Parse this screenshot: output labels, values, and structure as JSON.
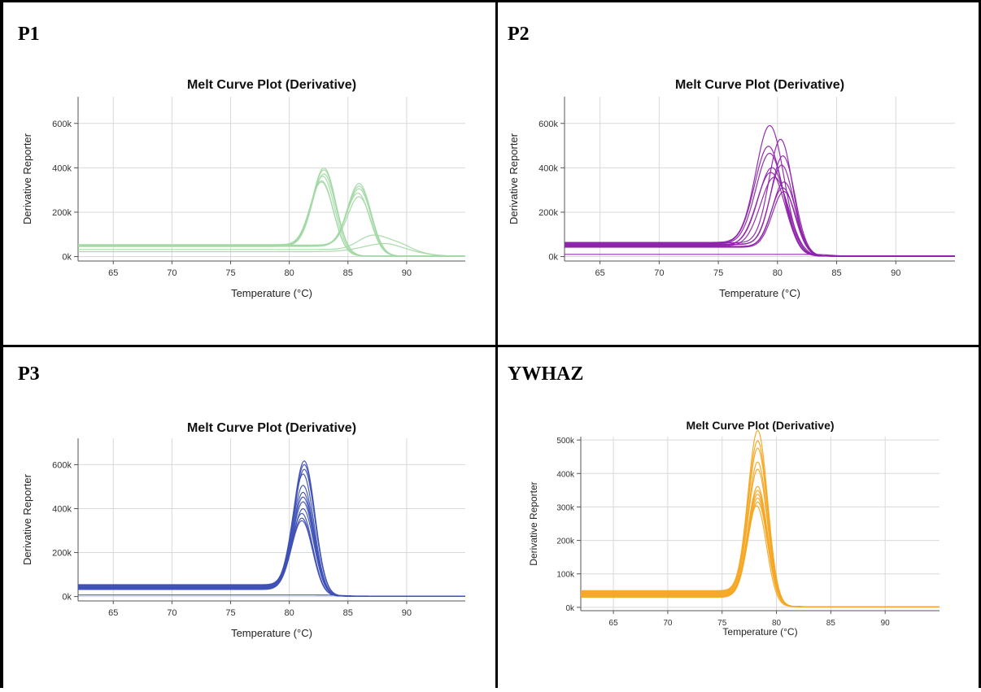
{
  "chart_data": [
    {
      "panel_label": "P1",
      "type": "line",
      "title": "Melt Curve Plot (Derivative)",
      "xlabel": "Temperature (°C)",
      "ylabel": "Derivative Reporter",
      "xlim": [
        62,
        95
      ],
      "ylim": [
        -20000,
        720000
      ],
      "xticks": [
        65,
        70,
        75,
        80,
        85,
        90
      ],
      "xtick_labels": [
        "65",
        "70",
        "75",
        "80",
        "85",
        "90"
      ],
      "yticks": [
        0,
        200000,
        400000,
        600000
      ],
      "ytick_labels": [
        "0k",
        "200k",
        "400k",
        "600k"
      ],
      "grid": true,
      "color": "#a3d9a5",
      "series": [
        {
          "base": 48000,
          "peaks": [
            {
              "c": 83.0,
              "h": 360000,
              "w": 1.0
            }
          ]
        },
        {
          "base": 50000,
          "peaks": [
            {
              "c": 83.0,
              "h": 350000,
              "w": 1.0
            }
          ]
        },
        {
          "base": 46000,
          "peaks": [
            {
              "c": 83.0,
              "h": 335000,
              "w": 1.0
            }
          ]
        },
        {
          "base": 52000,
          "peaks": [
            {
              "c": 82.9,
              "h": 320000,
              "w": 1.0
            }
          ]
        },
        {
          "base": 44000,
          "peaks": [
            {
              "c": 82.8,
              "h": 305000,
              "w": 1.0
            }
          ]
        },
        {
          "base": 50000,
          "peaks": [
            {
              "c": 82.8,
              "h": 295000,
              "w": 1.0
            }
          ]
        },
        {
          "base": 48000,
          "peaks": [
            {
              "c": 86.0,
              "h": 290000,
              "w": 1.0
            }
          ]
        },
        {
          "base": 46000,
          "peaks": [
            {
              "c": 86.0,
              "h": 280000,
              "w": 1.0
            }
          ]
        },
        {
          "base": 50000,
          "peaks": [
            {
              "c": 86.0,
              "h": 265000,
              "w": 1.0
            }
          ]
        },
        {
          "base": 44000,
          "peaks": [
            {
              "c": 85.9,
              "h": 250000,
              "w": 1.0
            }
          ]
        },
        {
          "base": 48000,
          "peaks": [
            {
              "c": 86.0,
              "h": 230000,
              "w": 1.0
            }
          ]
        },
        {
          "base": 30000,
          "peaks": [
            {
              "c": 87.0,
              "h": 55000,
              "w": 1.2
            },
            {
              "c": 89.5,
              "h": 30000,
              "w": 1.6
            }
          ]
        },
        {
          "base": 20000,
          "peaks": [
            {
              "c": 88.5,
              "h": 40000,
              "w": 2.0
            }
          ]
        }
      ]
    },
    {
      "panel_label": "P2",
      "type": "line",
      "title": "Melt Curve Plot (Derivative)",
      "xlabel": "Temperature (°C)",
      "ylabel": "Derivative Reporter",
      "xlim": [
        62,
        95
      ],
      "ylim": [
        -20000,
        720000
      ],
      "xticks": [
        65,
        70,
        75,
        80,
        85,
        90
      ],
      "xtick_labels": [
        "65",
        "70",
        "75",
        "80",
        "85",
        "90"
      ],
      "yticks": [
        0,
        200000,
        400000,
        600000
      ],
      "ytick_labels": [
        "0k",
        "200k",
        "400k",
        "600k"
      ],
      "grid": true,
      "color": "#8e24aa",
      "series": [
        {
          "base": 62000,
          "peaks": [
            {
              "c": 79.4,
              "h": 540000,
              "w": 1.2
            }
          ]
        },
        {
          "base": 60000,
          "peaks": [
            {
              "c": 80.3,
              "h": 480000,
              "w": 1.0
            }
          ]
        },
        {
          "base": 58000,
          "peaks": [
            {
              "c": 79.3,
              "h": 450000,
              "w": 1.2
            }
          ]
        },
        {
          "base": 56000,
          "peaks": [
            {
              "c": 79.4,
              "h": 420000,
              "w": 1.2
            }
          ]
        },
        {
          "base": 54000,
          "peaks": [
            {
              "c": 80.5,
              "h": 410000,
              "w": 1.0
            }
          ]
        },
        {
          "base": 52000,
          "peaks": [
            {
              "c": 80.4,
              "h": 370000,
              "w": 1.0
            }
          ]
        },
        {
          "base": 50000,
          "peaks": [
            {
              "c": 79.6,
              "h": 360000,
              "w": 1.2
            }
          ]
        },
        {
          "base": 48000,
          "peaks": [
            {
              "c": 79.5,
              "h": 340000,
              "w": 1.2
            }
          ]
        },
        {
          "base": 46000,
          "peaks": [
            {
              "c": 79.8,
              "h": 320000,
              "w": 1.2
            }
          ]
        },
        {
          "base": 44000,
          "peaks": [
            {
              "c": 80.6,
              "h": 300000,
              "w": 1.0
            }
          ]
        },
        {
          "base": 42000,
          "peaks": [
            {
              "c": 80.5,
              "h": 275000,
              "w": 1.0
            }
          ]
        },
        {
          "base": 40000,
          "peaks": [
            {
              "c": 80.6,
              "h": 260000,
              "w": 1.0
            }
          ]
        },
        {
          "base": 8000,
          "peaks": []
        }
      ]
    },
    {
      "panel_label": "P3",
      "type": "line",
      "title": "Melt Curve Plot (Derivative)",
      "xlabel": "Temperature (°C)",
      "ylabel": "Derivative Reporter",
      "xlim": [
        62,
        95
      ],
      "ylim": [
        -20000,
        720000
      ],
      "xticks": [
        65,
        70,
        75,
        80,
        85,
        90
      ],
      "xtick_labels": [
        "65",
        "70",
        "75",
        "80",
        "85",
        "90"
      ],
      "yticks": [
        0,
        200000,
        400000,
        600000
      ],
      "ytick_labels": [
        "0k",
        "200k",
        "400k",
        "600k"
      ],
      "grid": true,
      "color": "#3f51b5",
      "series": [
        {
          "base": 52000,
          "peaks": [
            {
              "c": 81.3,
              "h": 575000,
              "w": 0.9
            }
          ]
        },
        {
          "base": 50000,
          "peaks": [
            {
              "c": 81.3,
              "h": 560000,
              "w": 0.9
            }
          ]
        },
        {
          "base": 48000,
          "peaks": [
            {
              "c": 81.3,
              "h": 540000,
              "w": 0.9
            }
          ]
        },
        {
          "base": 46000,
          "peaks": [
            {
              "c": 81.2,
              "h": 520000,
              "w": 0.9
            }
          ]
        },
        {
          "base": 44000,
          "peaks": [
            {
              "c": 81.2,
              "h": 470000,
              "w": 0.9
            }
          ]
        },
        {
          "base": 42000,
          "peaks": [
            {
              "c": 81.2,
              "h": 440000,
              "w": 0.9
            }
          ]
        },
        {
          "base": 40000,
          "peaks": [
            {
              "c": 81.2,
              "h": 420000,
              "w": 0.9
            }
          ]
        },
        {
          "base": 38000,
          "peaks": [
            {
              "c": 81.2,
              "h": 400000,
              "w": 0.9
            }
          ]
        },
        {
          "base": 36000,
          "peaks": [
            {
              "c": 81.2,
              "h": 370000,
              "w": 0.9
            }
          ]
        },
        {
          "base": 34000,
          "peaks": [
            {
              "c": 81.1,
              "h": 350000,
              "w": 0.9
            }
          ]
        },
        {
          "base": 32000,
          "peaks": [
            {
              "c": 81.1,
              "h": 330000,
              "w": 0.9
            }
          ]
        },
        {
          "base": 30000,
          "peaks": [
            {
              "c": 81.1,
              "h": 320000,
              "w": 0.9
            }
          ]
        },
        {
          "base": 5000,
          "peaks": []
        }
      ]
    },
    {
      "panel_label": "YWHAZ",
      "type": "line",
      "title": "Melt Curve Plot (Derivative)",
      "xlabel": "Temperature (°C)",
      "ylabel": "Derivative Reporter",
      "xlim": [
        62,
        95
      ],
      "ylim": [
        -10000,
        510000
      ],
      "xticks": [
        65,
        70,
        75,
        80,
        85,
        90
      ],
      "xtick_labels": [
        "65",
        "70",
        "75",
        "80",
        "85",
        "90"
      ],
      "yticks": [
        0,
        100000,
        200000,
        300000,
        400000,
        500000
      ],
      "ytick_labels": [
        "0k",
        "100k",
        "200k",
        "300k",
        "400k",
        "500k"
      ],
      "grid": true,
      "color": "#f5a623",
      "series": [
        {
          "base": 48000,
          "peaks": [
            {
              "c": 78.3,
              "h": 490000,
              "w": 0.9
            }
          ]
        },
        {
          "base": 46000,
          "peaks": [
            {
              "c": 78.3,
              "h": 460000,
              "w": 0.9
            }
          ]
        },
        {
          "base": 44000,
          "peaks": [
            {
              "c": 78.3,
              "h": 440000,
              "w": 0.9
            }
          ]
        },
        {
          "base": 42000,
          "peaks": [
            {
              "c": 78.3,
              "h": 400000,
              "w": 0.9
            }
          ]
        },
        {
          "base": 40000,
          "peaks": [
            {
              "c": 78.3,
              "h": 380000,
              "w": 0.9
            }
          ]
        },
        {
          "base": 38000,
          "peaks": [
            {
              "c": 78.3,
              "h": 330000,
              "w": 0.9
            }
          ]
        },
        {
          "base": 36000,
          "peaks": [
            {
              "c": 78.3,
              "h": 320000,
              "w": 0.9
            }
          ]
        },
        {
          "base": 34000,
          "peaks": [
            {
              "c": 78.3,
              "h": 310000,
              "w": 0.9
            }
          ]
        },
        {
          "base": 32000,
          "peaks": [
            {
              "c": 78.3,
              "h": 300000,
              "w": 0.9
            }
          ]
        },
        {
          "base": 30000,
          "peaks": [
            {
              "c": 78.3,
              "h": 290000,
              "w": 0.9
            }
          ]
        },
        {
          "base": 28000,
          "peaks": [
            {
              "c": 78.2,
              "h": 280000,
              "w": 0.9
            }
          ]
        }
      ]
    }
  ]
}
